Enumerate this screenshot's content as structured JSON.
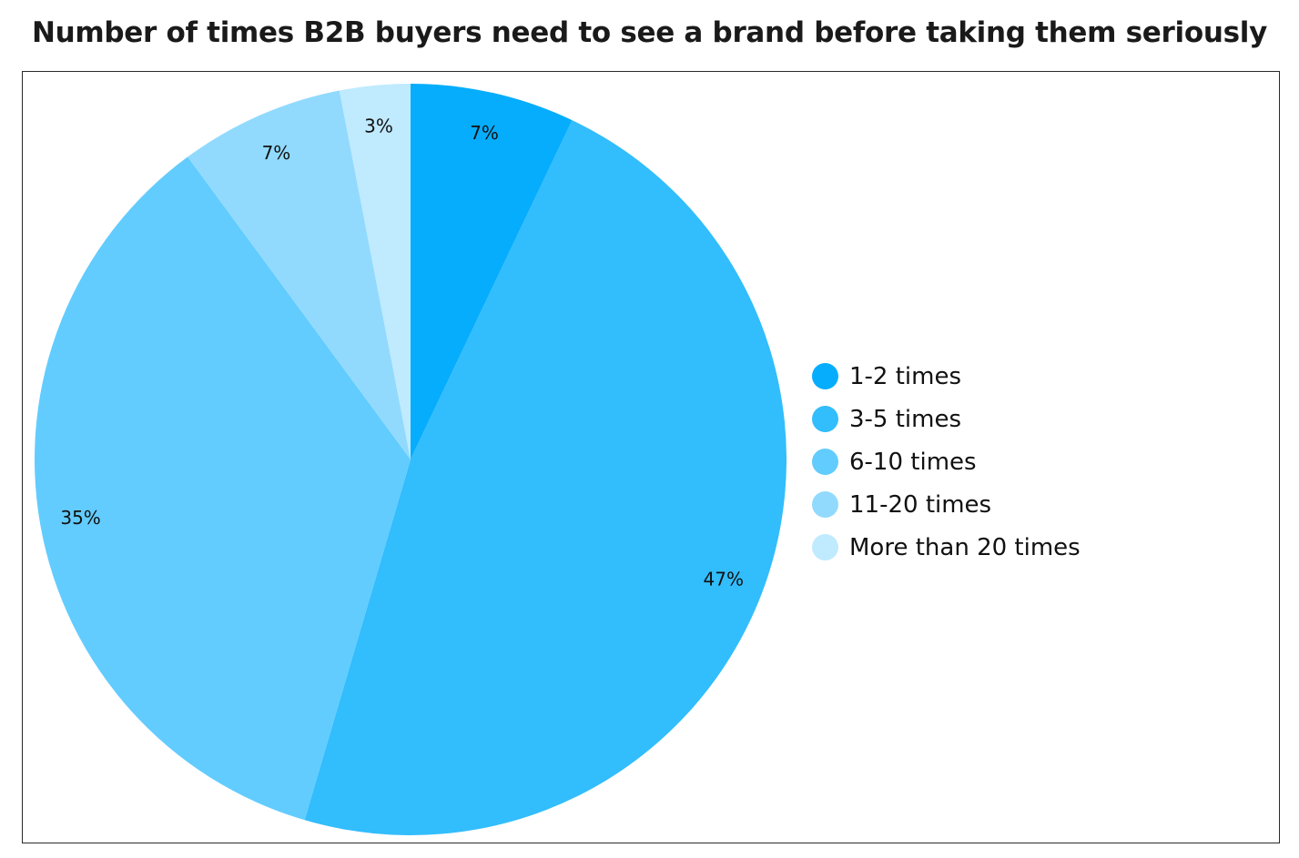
{
  "chart_data": {
    "type": "pie",
    "title": "Number of times B2B buyers need to see a brand before taking them seriously",
    "legend_position": "right",
    "categories": [
      "1-2 times",
      "3-5 times",
      "6-10 times",
      "11-20 times",
      "More than 20 times"
    ],
    "values": [
      7,
      47,
      35,
      7,
      3
    ],
    "labels": [
      "7%",
      "47%",
      "35%",
      "7%",
      "3%"
    ],
    "colors": [
      "#06adfd",
      "#32bdfd",
      "#62ccfe",
      "#91dafe",
      "#c0eafe"
    ],
    "start_angle": "12 o'clock",
    "direction": "clockwise"
  }
}
